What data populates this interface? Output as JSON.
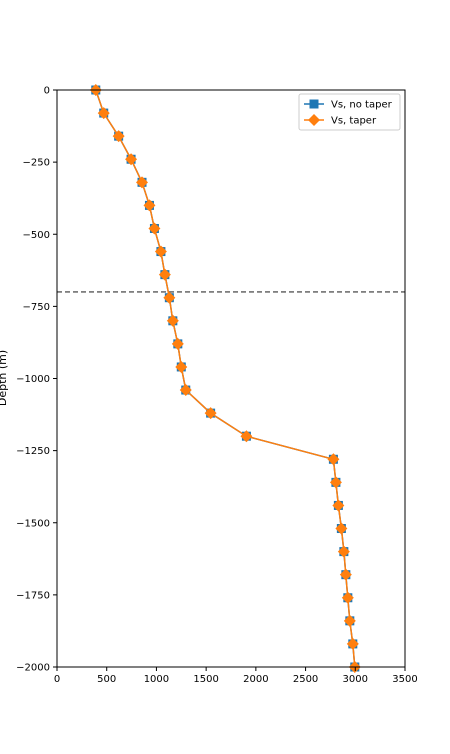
{
  "chart_data": {
    "type": "line",
    "title": "",
    "xlabel": "",
    "ylabel": "Depth (m)",
    "xlim": [
      0,
      3500
    ],
    "ylim": [
      -2000,
      0
    ],
    "xticks": [
      0,
      500,
      1000,
      1500,
      2000,
      2500,
      3000,
      3500
    ],
    "xtick_labels": [
      "0",
      "500",
      "1000",
      "1500",
      "2000",
      "2500",
      "3000",
      "3500"
    ],
    "yticks": [
      0,
      -250,
      -500,
      -750,
      -1000,
      -1250,
      -1500,
      -1750,
      -2000
    ],
    "ytick_labels": [
      "0",
      "−250",
      "−500",
      "−750",
      "−1000",
      "−1250",
      "−1500",
      "−1750",
      "−2000"
    ],
    "grid": false,
    "legend_position": "top-right",
    "reference_line": {
      "orientation": "horizontal",
      "y": -700,
      "style": "dashed",
      "color": "#333333"
    },
    "series": [
      {
        "name": "Vs, no taper",
        "color": "#1f77b4",
        "marker": "square",
        "x": [
          390,
          470,
          620,
          745,
          855,
          930,
          980,
          1045,
          1085,
          1130,
          1165,
          1215,
          1250,
          1295,
          1545,
          1905,
          2780,
          2805,
          2830,
          2860,
          2885,
          2905,
          2925,
          2945,
          2975,
          2995
        ],
        "y": [
          0,
          -80,
          -160,
          -240,
          -320,
          -400,
          -480,
          -560,
          -640,
          -720,
          -800,
          -880,
          -960,
          -1040,
          -1120,
          -1200,
          -1280,
          -1360,
          -1440,
          -1520,
          -1600,
          -1680,
          -1760,
          -1840,
          -1920,
          -2000
        ]
      },
      {
        "name": "Vs, taper",
        "color": "#ff7f0e",
        "marker": "diamond",
        "x": [
          390,
          470,
          620,
          745,
          855,
          930,
          980,
          1045,
          1085,
          1130,
          1165,
          1215,
          1250,
          1295,
          1545,
          1905,
          2780,
          2805,
          2830,
          2860,
          2885,
          2905,
          2925,
          2945,
          2975,
          2995
        ],
        "y": [
          0,
          -80,
          -160,
          -240,
          -320,
          -400,
          -480,
          -560,
          -640,
          -720,
          -800,
          -880,
          -960,
          -1040,
          -1120,
          -1200,
          -1280,
          -1360,
          -1440,
          -1520,
          -1600,
          -1680,
          -1760,
          -1840,
          -1920,
          -2000
        ]
      }
    ]
  }
}
